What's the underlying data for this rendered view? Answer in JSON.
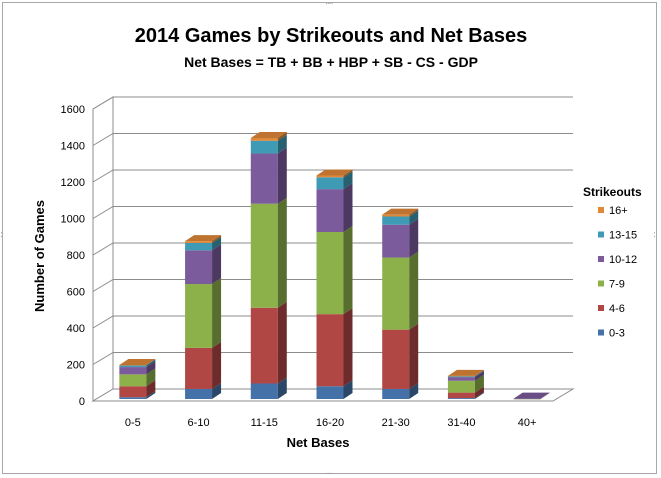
{
  "chart_data": {
    "type": "bar",
    "stacked": true,
    "three_d": true,
    "title": "2014 Games by Strikeouts and Net Bases",
    "subtitle": "Net Bases = TB + BB + HBP + SB - CS - GDP",
    "xlabel": "Net Bases",
    "ylabel": "Number of Games",
    "ylim": [
      0,
      1600
    ],
    "yticks": [
      "0",
      "200",
      "400",
      "600",
      "800",
      "1000",
      "1200",
      "1400",
      "1600"
    ],
    "grid": true,
    "legend_title": "Strikeouts",
    "legend_position": "right",
    "categories": [
      "0-5",
      "6-10",
      "11-15",
      "16-20",
      "21-30",
      "31-40",
      "40+"
    ],
    "series": [
      {
        "name": "0-3",
        "color": "#4472a8",
        "values": [
          10,
          55,
          85,
          70,
          55,
          5,
          0
        ]
      },
      {
        "name": "4-6",
        "color": "#b04745",
        "values": [
          60,
          225,
          415,
          395,
          325,
          30,
          0
        ]
      },
      {
        "name": "7-9",
        "color": "#8db14a",
        "values": [
          65,
          350,
          570,
          450,
          395,
          65,
          1
        ]
      },
      {
        "name": "10-12",
        "color": "#7b5b9c",
        "values": [
          40,
          185,
          275,
          235,
          180,
          20,
          1
        ]
      },
      {
        "name": "13-15",
        "color": "#3f9bb5",
        "values": [
          10,
          40,
          70,
          65,
          45,
          5,
          0
        ]
      },
      {
        "name": "16+",
        "color": "#e08838",
        "values": [
          1,
          10,
          15,
          10,
          10,
          2,
          0
        ]
      }
    ]
  }
}
